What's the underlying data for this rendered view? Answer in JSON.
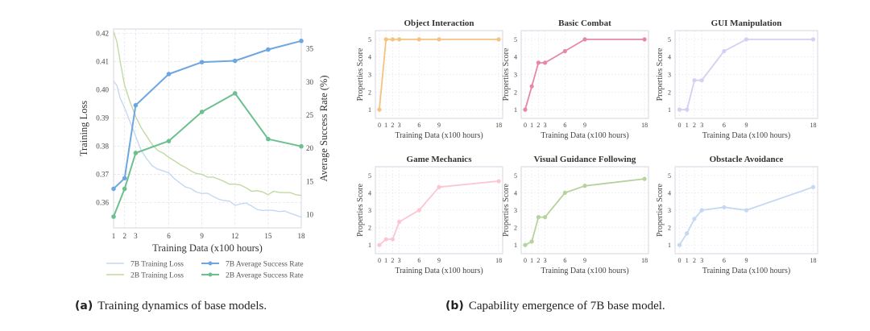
{
  "captions": {
    "a": {
      "label": "(a)",
      "text": "Training dynamics of base models."
    },
    "b": {
      "label": "(b)",
      "text": "Capability emergence of 7B base model."
    }
  },
  "chart_data": [
    {
      "id": "training-dynamics",
      "type": "line",
      "title": "",
      "xlabel": "Training Data (x100 hours)",
      "ylabel": "Training Loss",
      "y2label": "Average Success Rate (%)",
      "xticks": [
        1,
        2,
        3,
        6,
        9,
        12,
        15,
        18
      ],
      "xlim": [
        1,
        18
      ],
      "ylim": [
        0.351,
        0.4215
      ],
      "yticks": [
        0.36,
        0.37,
        0.38,
        0.39,
        0.4,
        0.41,
        0.42
      ],
      "ytick_labels": [
        "0.36",
        "0.37",
        "0.38",
        "0.39",
        "0.40",
        "0.41",
        "0.42"
      ],
      "y2lim": [
        8,
        38
      ],
      "y2ticks": [
        10,
        15,
        20,
        25,
        30,
        35
      ],
      "grid": true,
      "legend": "bottom",
      "series": [
        {
          "name": "7B Training Loss",
          "axis": "left",
          "color": "#c5d8f3",
          "markers": false,
          "x": [
            1,
            1.3,
            1.6,
            2,
            2.5,
            3,
            3.5,
            4,
            4.5,
            5,
            5.5,
            6,
            6.5,
            7,
            7.5,
            8,
            8.5,
            9,
            9.5,
            10,
            10.5,
            11,
            11.5,
            12,
            12.5,
            13,
            13.5,
            14,
            14.5,
            15,
            15.5,
            16,
            16.5,
            17,
            17.5,
            18
          ],
          "y": [
            0.403,
            0.4015,
            0.397,
            0.3935,
            0.3885,
            0.3835,
            0.3785,
            0.3755,
            0.373,
            0.3718,
            0.3712,
            0.3705,
            0.3685,
            0.367,
            0.3655,
            0.365,
            0.3637,
            0.3632,
            0.3633,
            0.3622,
            0.3612,
            0.3607,
            0.3605,
            0.359,
            0.3595,
            0.3598,
            0.3588,
            0.3575,
            0.3572,
            0.3573,
            0.3572,
            0.3568,
            0.357,
            0.3562,
            0.3555,
            0.3548
          ]
        },
        {
          "name": "2B Training Loss",
          "axis": "left",
          "color": "#c2d9a4",
          "markers": false,
          "x": [
            1,
            1.3,
            1.6,
            2,
            2.5,
            3,
            3.5,
            4,
            4.5,
            5,
            5.5,
            6,
            6.5,
            7,
            7.5,
            8,
            8.5,
            9,
            9.5,
            10,
            10.5,
            11,
            11.5,
            12,
            12.5,
            13,
            13.5,
            14,
            14.5,
            15,
            15.5,
            16,
            16.5,
            17,
            17.5,
            18
          ],
          "y": [
            0.4205,
            0.417,
            0.41,
            0.4015,
            0.3955,
            0.3905,
            0.3865,
            0.3835,
            0.3805,
            0.3785,
            0.3775,
            0.376,
            0.3748,
            0.3735,
            0.3725,
            0.3712,
            0.3703,
            0.37,
            0.369,
            0.369,
            0.3683,
            0.3675,
            0.3665,
            0.3665,
            0.3662,
            0.3652,
            0.364,
            0.3642,
            0.3638,
            0.3628,
            0.364,
            0.3636,
            0.3635,
            0.3635,
            0.3628,
            0.3625
          ]
        },
        {
          "name": "7B Average Success Rate",
          "axis": "right",
          "color": "#6ea6e0",
          "markers": true,
          "x": [
            1,
            2,
            3,
            6,
            9,
            12,
            15,
            18
          ],
          "y": [
            13.9,
            15.5,
            26.5,
            31.2,
            33.0,
            33.2,
            34.9,
            36.2
          ]
        },
        {
          "name": "2B Average Success Rate",
          "axis": "right",
          "color": "#6cc08f",
          "markers": true,
          "x": [
            1,
            2,
            3,
            6,
            9,
            12,
            15,
            18
          ],
          "y": [
            9.7,
            13.9,
            19.3,
            21.1,
            25.5,
            28.3,
            21.4,
            20.3
          ]
        }
      ]
    },
    {
      "id": "capability-emergence",
      "type": "line",
      "xlabel": "Training Data (x100 hours)",
      "ylabel": "Properties Score",
      "xticks": [
        0,
        1,
        2,
        3,
        6,
        9,
        18
      ],
      "xlim": [
        0,
        18
      ],
      "ylim": [
        0.5,
        5.5
      ],
      "yticks": [
        1,
        2,
        3,
        4,
        5
      ],
      "grid": true,
      "panels": [
        {
          "title": "Object Interaction",
          "color": "#f5c27f",
          "x": [
            0,
            1,
            2,
            3,
            6,
            9,
            18
          ],
          "y": [
            1,
            5,
            5,
            5,
            5,
            5,
            5
          ]
        },
        {
          "title": "Basic Combat",
          "color": "#e688a4",
          "x": [
            0,
            1,
            2,
            3,
            6,
            9,
            18
          ],
          "y": [
            1,
            2.33,
            3.67,
            3.67,
            4.33,
            5,
            5
          ]
        },
        {
          "title": "GUI Manipulation",
          "color": "#d3d0f4",
          "x": [
            0,
            1,
            2,
            3,
            6,
            9,
            18
          ],
          "y": [
            1,
            1,
            2.67,
            2.67,
            4.33,
            5,
            5
          ]
        },
        {
          "title": "Game Mechanics",
          "color": "#fcc5d2",
          "x": [
            0,
            1,
            2,
            3,
            6,
            9,
            18
          ],
          "y": [
            1,
            1.33,
            1.33,
            2.33,
            3,
            4.33,
            4.67
          ]
        },
        {
          "title": "Visual Guidance Following",
          "color": "#b5d39b",
          "x": [
            0,
            1,
            2,
            3,
            6,
            9,
            18
          ],
          "y": [
            1,
            1.2,
            2.6,
            2.6,
            4,
            4.4,
            4.8
          ]
        },
        {
          "title": "Obstacle Avoidance",
          "color": "#c4d8f3",
          "x": [
            0,
            1,
            2,
            3,
            6,
            9,
            18
          ],
          "y": [
            1,
            1.67,
            2.5,
            3,
            3.17,
            3,
            4.33
          ]
        }
      ]
    }
  ]
}
